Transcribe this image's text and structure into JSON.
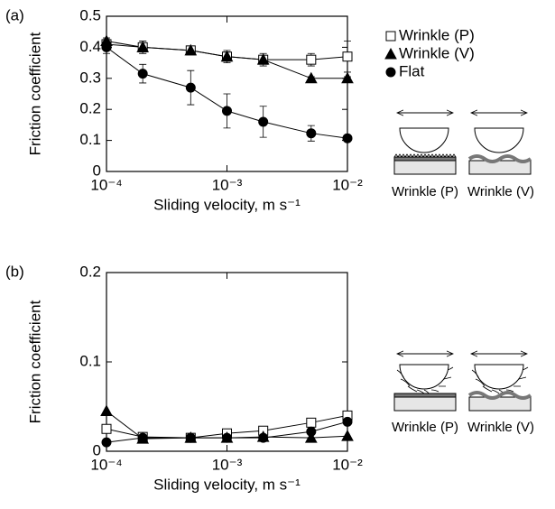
{
  "chart_data": [
    {
      "type": "line",
      "panel_label": "(a)",
      "x_label": "Sliding velocity, m s⁻¹",
      "y_label": "Friction coefficient",
      "x": [
        0.0001,
        0.0002,
        0.0005,
        0.001,
        0.002,
        0.005,
        0.01
      ],
      "xlim": [
        0.0001,
        0.01
      ],
      "xscale": "log",
      "xticks": [
        {
          "value": 0.0001,
          "label": "10⁻⁴"
        },
        {
          "value": 0.001,
          "label": "10⁻³"
        },
        {
          "value": 0.01,
          "label": "10⁻²"
        }
      ],
      "ylim": [
        0,
        0.5
      ],
      "yticks": [
        0,
        0.1,
        0.2,
        0.3,
        0.4,
        0.5
      ],
      "legend": "right",
      "series": [
        {
          "name": "Wrinkle (P)",
          "marker": "square-open",
          "color": "#000000",
          "values": [
            0.41,
            0.4,
            0.39,
            0.37,
            0.36,
            0.36,
            0.37
          ],
          "errors": [
            0.015,
            0.02,
            0.01,
            0.02,
            0.02,
            0.02,
            0.05
          ]
        },
        {
          "name": "Wrinkle (V)",
          "marker": "triangle",
          "color": "#000000",
          "values": [
            0.42,
            0.4,
            0.39,
            0.37,
            0.36,
            0.3,
            0.3
          ],
          "errors": [
            0.01,
            0.02,
            0.01,
            0.015,
            0.01,
            0.005,
            0.005
          ]
        },
        {
          "name": "Flat",
          "marker": "circle",
          "color": "#000000",
          "values": [
            0.4,
            0.315,
            0.27,
            0.195,
            0.16,
            0.123,
            0.107
          ],
          "errors": [
            0.02,
            0.03,
            0.055,
            0.055,
            0.05,
            0.025,
            0.005
          ]
        }
      ]
    },
    {
      "type": "line",
      "panel_label": "(b)",
      "x_label": "Sliding velocity, m s⁻¹",
      "y_label": "Friction coefficient",
      "x": [
        0.0001,
        0.0002,
        0.0005,
        0.001,
        0.002,
        0.005,
        0.01
      ],
      "xlim": [
        0.0001,
        0.01
      ],
      "xscale": "log",
      "xticks": [
        {
          "value": 0.0001,
          "label": "10⁻⁴"
        },
        {
          "value": 0.001,
          "label": "10⁻³"
        },
        {
          "value": 0.01,
          "label": "10⁻²"
        }
      ],
      "ylim": [
        0,
        0.2
      ],
      "yticks": [
        0,
        0.1,
        0.2
      ],
      "series": [
        {
          "marker": "square-open",
          "color": "#000000",
          "values": [
            0.025,
            0.016,
            0.015,
            0.02,
            0.023,
            0.032,
            0.04
          ]
        },
        {
          "marker": "triangle",
          "color": "#000000",
          "values": [
            0.045,
            0.014,
            0.015,
            0.015,
            0.016,
            0.015,
            0.017
          ]
        },
        {
          "marker": "circle",
          "color": "#000000",
          "values": [
            0.01,
            0.015,
            0.015,
            0.015,
            0.015,
            0.022,
            0.033
          ]
        }
      ]
    }
  ],
  "diagrams": [
    [
      "Wrinkle (P)",
      "Wrinkle (V)"
    ],
    [
      "Wrinkle (P)",
      "Wrinkle (V)"
    ]
  ]
}
